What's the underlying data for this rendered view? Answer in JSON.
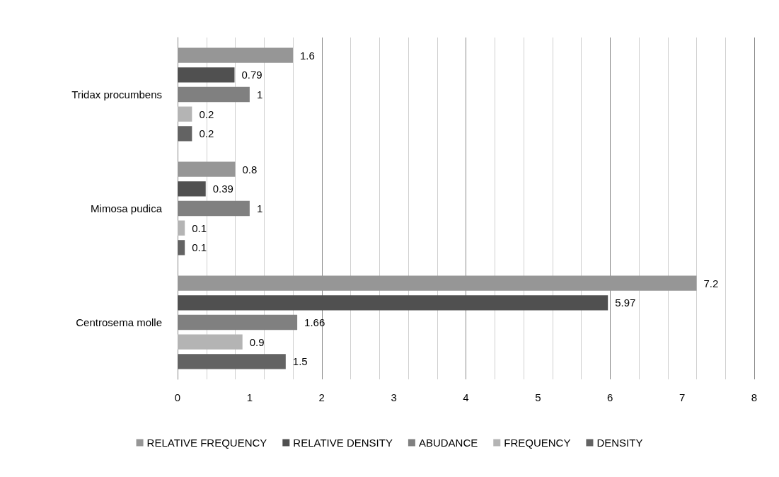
{
  "chart_data": {
    "type": "bar",
    "orientation": "horizontal",
    "categories": [
      "Tridax procumbens",
      "Mimosa pudica",
      "Centrosema molle"
    ],
    "series": [
      {
        "name": "RELATIVE FREQUENCY",
        "color": "#969696",
        "values": [
          1.6,
          0.8,
          7.2
        ]
      },
      {
        "name": "RELATIVE DENSITY",
        "color": "#505050",
        "values": [
          0.79,
          0.39,
          5.97
        ]
      },
      {
        "name": "ABUDANCE",
        "color": "#808080",
        "values": [
          1,
          1,
          1.66
        ]
      },
      {
        "name": "FREQUENCY",
        "color": "#b4b4b4",
        "values": [
          0.2,
          0.1,
          0.9
        ]
      },
      {
        "name": "DENSITY",
        "color": "#636363",
        "values": [
          0.2,
          0.1,
          1.5
        ]
      }
    ],
    "xlim": [
      0,
      8
    ],
    "xticks": [
      0,
      1,
      2,
      3,
      4,
      5,
      6,
      7,
      8
    ],
    "grid": "x",
    "legend": "bottom",
    "data_labels": true
  }
}
